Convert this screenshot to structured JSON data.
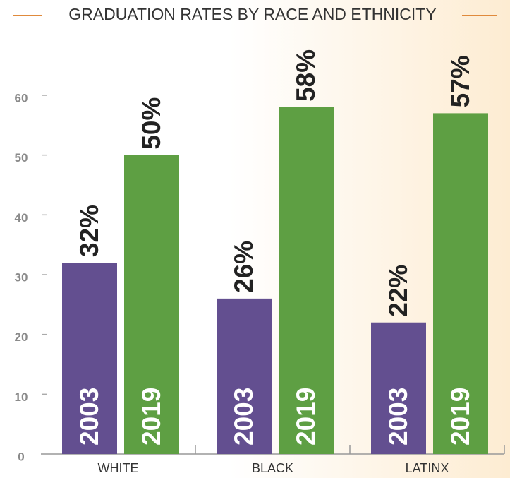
{
  "chart_data": {
    "type": "bar",
    "title": "GRADUATION RATES BY RACE AND ETHNICITY",
    "categories": [
      "WHITE",
      "BLACK",
      "LATINX"
    ],
    "series": [
      {
        "name": "2003",
        "color": "#634f90",
        "values": [
          32,
          26,
          22
        ],
        "value_labels": [
          "32%",
          "26%",
          "22%"
        ]
      },
      {
        "name": "2019",
        "color": "#5e9f43",
        "values": [
          50,
          58,
          57
        ],
        "value_labels": [
          "50%",
          "58%",
          "57%"
        ]
      }
    ],
    "ylim": [
      0,
      60
    ],
    "yticks": [
      0,
      10,
      20,
      30,
      40,
      50,
      60
    ],
    "grid": false
  }
}
